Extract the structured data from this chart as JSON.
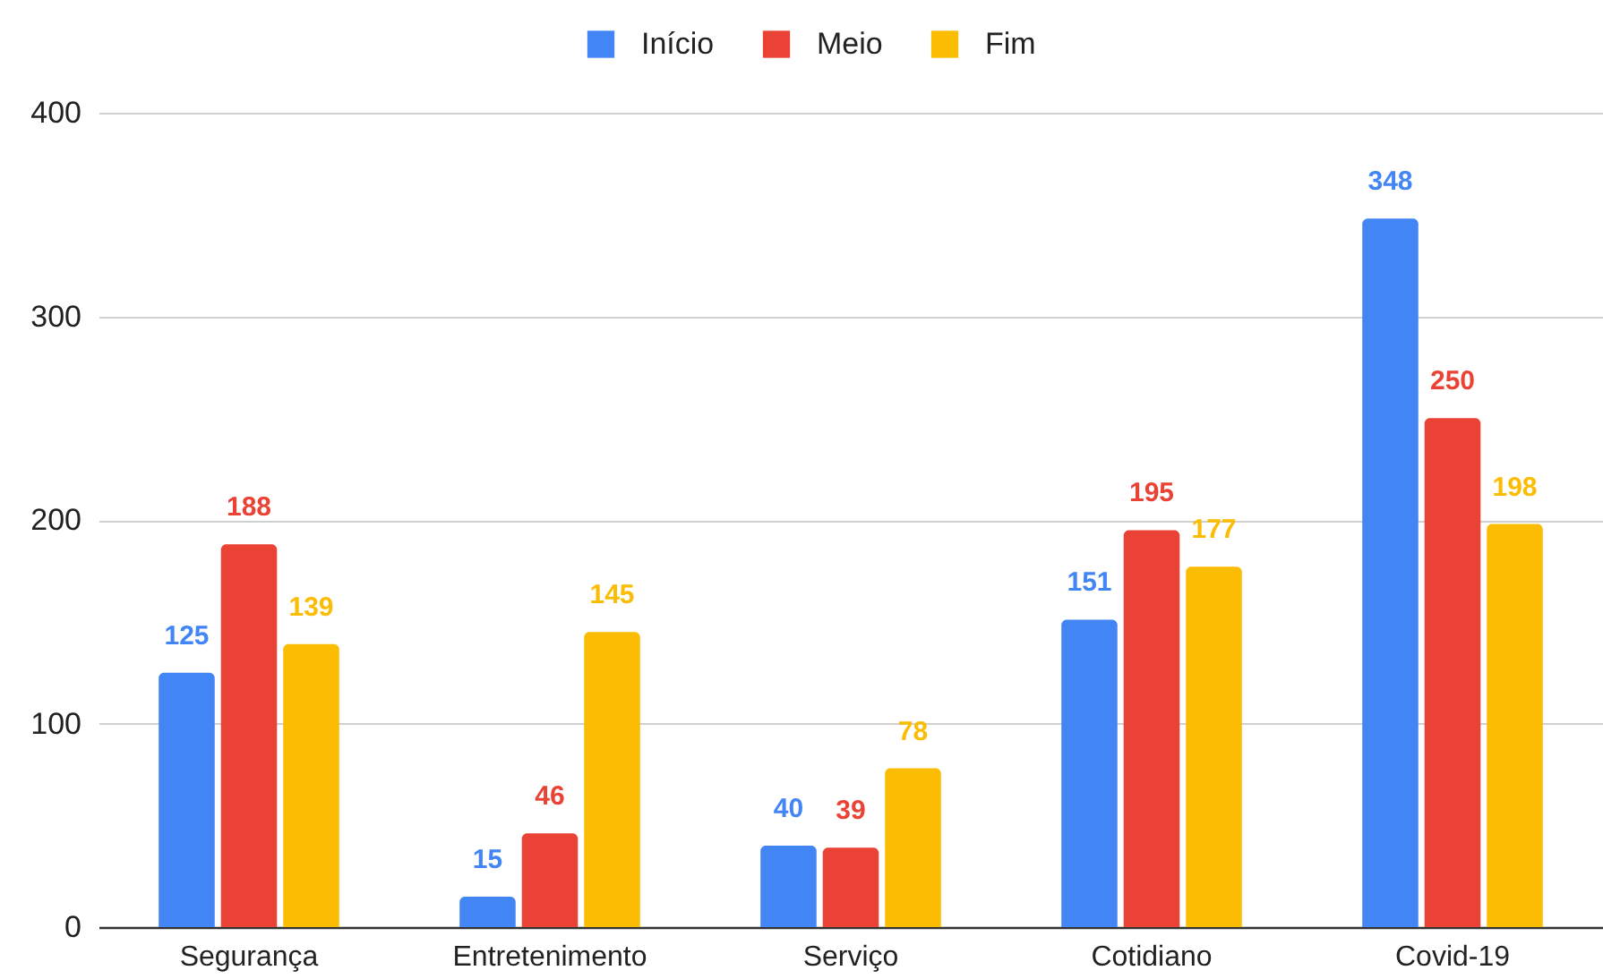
{
  "chart_data": {
    "type": "bar",
    "categories": [
      "Segurança",
      "Entretenimento",
      "Serviço",
      "Cotidiano",
      "Covid-19"
    ],
    "series": [
      {
        "name": "Início",
        "color": "#4285f4",
        "values": [
          125,
          15,
          40,
          151,
          348
        ]
      },
      {
        "name": "Meio",
        "color": "#ea4335",
        "values": [
          188,
          46,
          39,
          195,
          250
        ]
      },
      {
        "name": "Fim",
        "color": "#fbbc04",
        "values": [
          139,
          145,
          78,
          177,
          198
        ]
      }
    ],
    "ylim": [
      0,
      400
    ],
    "yticks": [
      0,
      100,
      200,
      300,
      400
    ],
    "grid": "y",
    "legend": "top",
    "data_labels": true
  }
}
